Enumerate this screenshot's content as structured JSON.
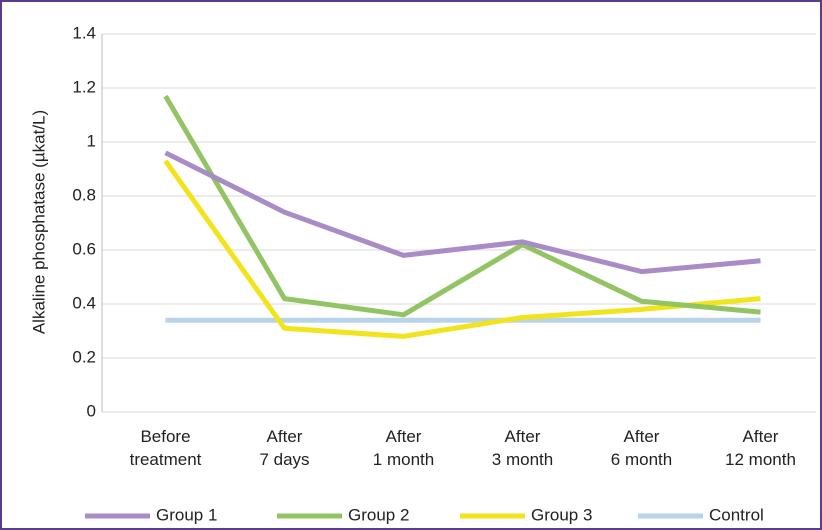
{
  "chart_data": {
    "type": "line",
    "ylabel": "Alkaline phosphatase (µkat/L)",
    "categories": [
      "Before treatment",
      "After 7 days",
      "After 1 month",
      "After 3 month",
      "After 6 month",
      "After 12 month"
    ],
    "series": [
      {
        "name": "Group 1",
        "color": "#a98bc6",
        "values": [
          0.96,
          0.74,
          0.58,
          0.63,
          0.52,
          0.56
        ]
      },
      {
        "name": "Group 2",
        "color": "#92c464",
        "values": [
          1.17,
          0.42,
          0.36,
          0.62,
          0.41,
          0.37
        ]
      },
      {
        "name": "Group 3",
        "color": "#f2e41c",
        "values": [
          0.93,
          0.31,
          0.28,
          0.35,
          0.38,
          0.42
        ]
      },
      {
        "name": "Control",
        "color": "#b8d3ea",
        "values": [
          0.34,
          0.34,
          0.34,
          0.34,
          0.34,
          0.34
        ]
      }
    ],
    "ylim": [
      0,
      1.4
    ],
    "yticks": [
      0,
      0.2,
      0.4,
      0.6,
      0.8,
      1,
      1.2,
      1.4
    ],
    "grid": true,
    "legend": "bottom"
  }
}
